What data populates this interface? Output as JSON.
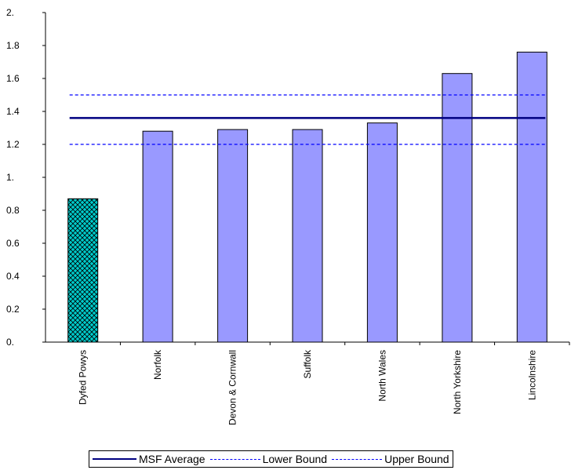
{
  "chart_data": {
    "type": "bar",
    "title": "",
    "xlabel": "",
    "ylabel": "",
    "categories": [
      "Dyfed Powys",
      "Norfolk",
      "Devon & Cornwall",
      "Suffolk",
      "North Wales",
      "North Yorkshire",
      "Lincolnshire"
    ],
    "values": [
      0.87,
      1.28,
      1.29,
      1.29,
      1.33,
      1.63,
      1.76
    ],
    "ylim": [
      0,
      2
    ],
    "y_ticks": [
      0,
      0.2,
      0.4,
      0.6,
      0.8,
      1,
      1.2,
      1.4,
      1.6,
      1.8,
      2
    ],
    "y_tick_labels": [
      "0.",
      "0.2",
      "0.4",
      "0.6",
      "0.8",
      "1.",
      "1.2",
      "1.4",
      "1.6",
      "1.8",
      "2."
    ],
    "bar_color": "#9999ff",
    "highlight_bar_index": 0,
    "highlight_color": "#00cccc",
    "highlight_pattern": "crosshatch",
    "reference_lines": [
      {
        "name": "MSF Average",
        "value": 1.36,
        "color": "#000080",
        "style": "solid"
      },
      {
        "name": "Lower Bound",
        "value": 1.2,
        "color": "#0000ff",
        "style": "dashed"
      },
      {
        "name": "Upper Bound",
        "value": 1.5,
        "color": "#0000ff",
        "style": "dashed"
      }
    ],
    "legend_position": "bottom",
    "grid": false
  }
}
